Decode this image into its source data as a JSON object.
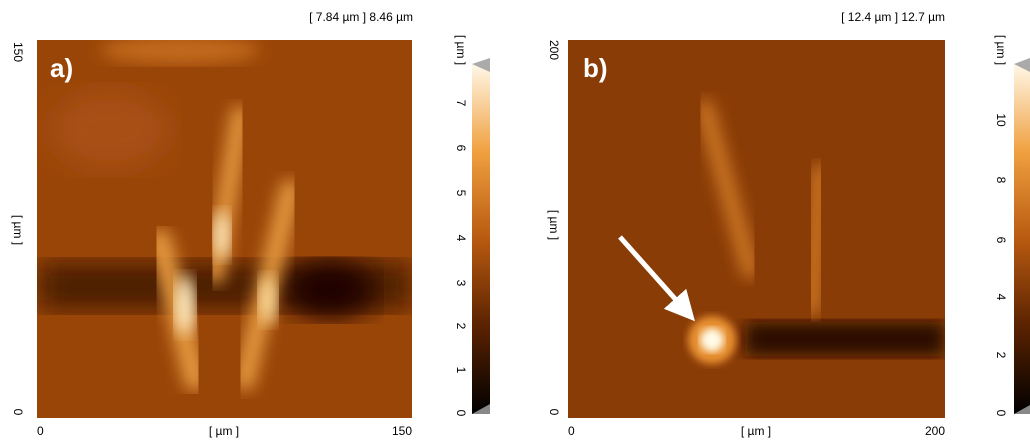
{
  "panels": [
    {
      "label": "a)",
      "header": "[ 7.84 µm ] 8.46 µm",
      "x_axis": {
        "label": "[ µm ]",
        "ticks": [
          0,
          150
        ]
      },
      "y_axis": {
        "label": "[ µm ]",
        "ticks": [
          0,
          150
        ]
      },
      "colorbar": {
        "unit": "[ µm ]",
        "ticks": [
          0,
          1,
          2,
          3,
          4,
          5,
          6,
          7
        ]
      }
    },
    {
      "label": "b)",
      "header": "[ 12.4 µm ] 12.7 µm",
      "x_axis": {
        "label": "[ µm ]",
        "ticks": [
          0,
          200
        ]
      },
      "y_axis": {
        "label": "[ µm ]",
        "ticks": [
          0,
          200
        ]
      },
      "colorbar": {
        "unit": "[ µm ]",
        "ticks": [
          0,
          2,
          4,
          6,
          8,
          10
        ]
      }
    }
  ]
}
